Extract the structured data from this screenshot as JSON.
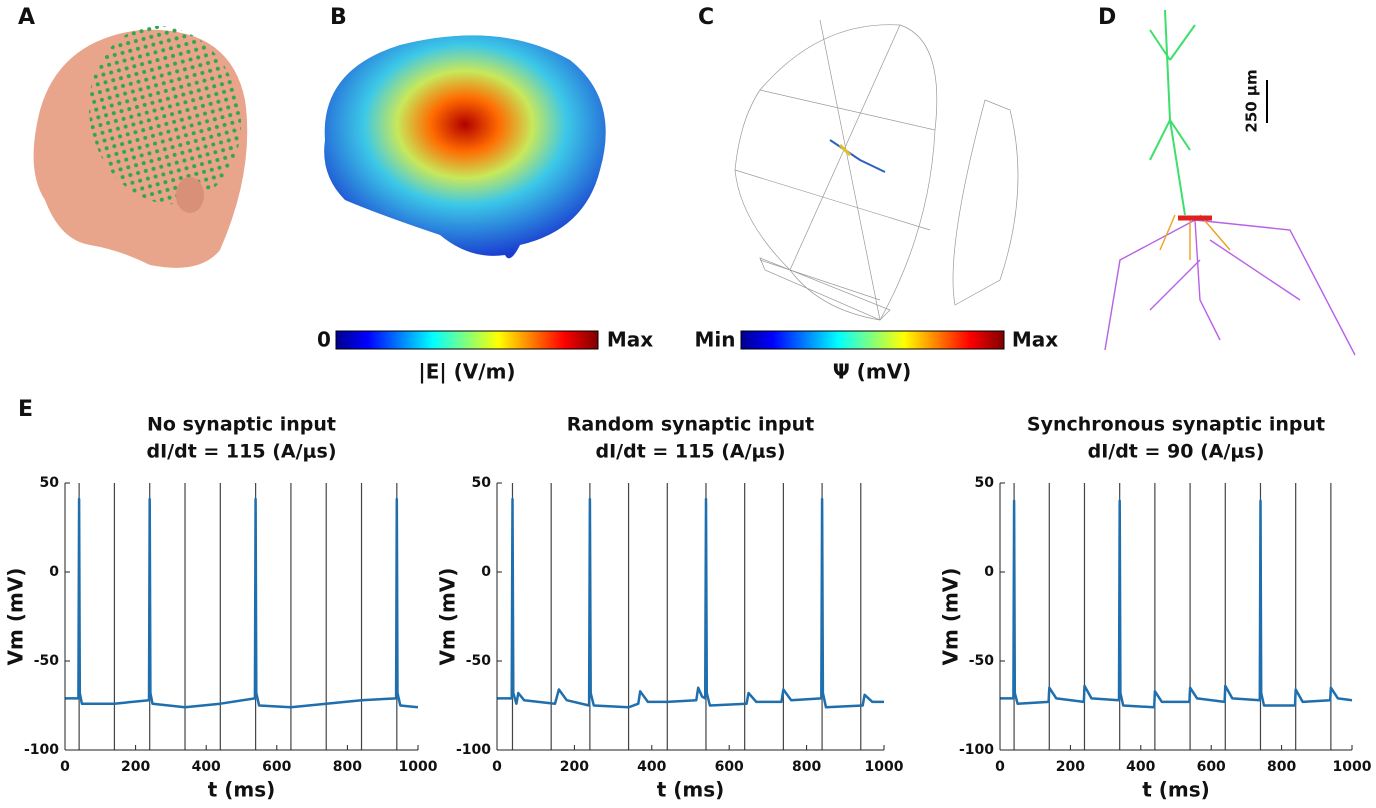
{
  "panels": {
    "labels": [
      "A",
      "B",
      "C",
      "D",
      "E"
    ],
    "colorbar_e": {
      "min": "0",
      "max": "Max",
      "label": "|E| (V/m)"
    },
    "colorbar_psi": {
      "min": "Min",
      "max": "Max",
      "label": "Ψ (mV)"
    },
    "scale_bar": "250 µm"
  },
  "chart_data": [
    {
      "type": "line",
      "title": "No synaptic input",
      "subtitle": "dI/dt = 115 (A/μs)",
      "x_label": "t (ms)",
      "y_label": "Vm (mV)",
      "xlim": [
        0,
        1000
      ],
      "ylim": [
        -100,
        50
      ],
      "xticks": [
        0,
        200,
        400,
        600,
        800,
        1000
      ],
      "yticks": [
        -100,
        -50,
        0,
        50
      ],
      "pulses": [
        40,
        140,
        240,
        340,
        440,
        540,
        640,
        740,
        840,
        940
      ],
      "pulse_color": "#444444",
      "series": [
        {
          "color": "#1f6fae",
          "x": [
            0,
            38,
            40,
            42,
            48,
            140,
            238,
            240,
            242,
            248,
            340,
            440,
            538,
            540,
            542,
            550,
            640,
            740,
            840,
            938,
            940,
            942,
            950,
            1000
          ],
          "values": [
            -71,
            -71,
            41,
            -68,
            -74,
            -74,
            -72,
            41,
            -68,
            -74,
            -76,
            -74,
            -71,
            41,
            -68,
            -75,
            -76,
            -74,
            -72,
            -71,
            41,
            -68,
            -75,
            -76
          ]
        }
      ]
    },
    {
      "type": "line",
      "title": "Random synaptic input",
      "subtitle": "dI/dt = 115 (A/μs)",
      "x_label": "t (ms)",
      "y_label": "Vm (mV)",
      "xlim": [
        0,
        1000
      ],
      "ylim": [
        -100,
        50
      ],
      "xticks": [
        0,
        200,
        400,
        600,
        800,
        1000
      ],
      "yticks": [
        -100,
        -50,
        0,
        50
      ],
      "pulses": [
        40,
        140,
        240,
        340,
        440,
        540,
        640,
        740,
        840,
        940
      ],
      "pulse_color": "#444444",
      "series": [
        {
          "color": "#1f6fae",
          "x": [
            0,
            38,
            40,
            42,
            50,
            55,
            70,
            150,
            160,
            180,
            238,
            240,
            242,
            250,
            340,
            365,
            370,
            390,
            440,
            515,
            520,
            530,
            538,
            540,
            542,
            550,
            645,
            650,
            670,
            735,
            740,
            760,
            838,
            840,
            842,
            850,
            945,
            950,
            970,
            1000
          ],
          "values": [
            -71,
            -71,
            41,
            -68,
            -74,
            -68,
            -72,
            -74,
            -66,
            -72,
            -75,
            41,
            -68,
            -75,
            -76,
            -74,
            -67,
            -73,
            -73,
            -72,
            -65,
            -70,
            -71,
            41,
            -68,
            -75,
            -74,
            -68,
            -73,
            -73,
            -66,
            -72,
            -71,
            41,
            -68,
            -76,
            -75,
            -69,
            -73,
            -73
          ]
        }
      ]
    },
    {
      "type": "line",
      "title": "Synchronous synaptic input",
      "subtitle": "dI/dt = 90 (A/μs)",
      "x_label": "t (ms)",
      "y_label": "Vm (mV)",
      "xlim": [
        0,
        1000
      ],
      "ylim": [
        -100,
        50
      ],
      "xticks": [
        0,
        200,
        400,
        600,
        800,
        1000
      ],
      "yticks": [
        -100,
        -50,
        0,
        50
      ],
      "pulses": [
        40,
        140,
        240,
        340,
        440,
        540,
        640,
        740,
        840,
        940
      ],
      "pulse_color": "#444444",
      "series": [
        {
          "color": "#1f6fae",
          "x": [
            0,
            38,
            40,
            42,
            50,
            138,
            140,
            160,
            238,
            240,
            260,
            338,
            340,
            342,
            350,
            438,
            440,
            460,
            538,
            540,
            560,
            638,
            640,
            660,
            738,
            740,
            742,
            750,
            838,
            840,
            860,
            938,
            940,
            960,
            1000
          ],
          "values": [
            -71,
            -71,
            40,
            -68,
            -74,
            -73,
            -65,
            -71,
            -73,
            -64,
            -71,
            -72,
            40,
            -68,
            -75,
            -76,
            -67,
            -73,
            -73,
            -65,
            -71,
            -73,
            -64,
            -71,
            -72,
            40,
            -68,
            -75,
            -75,
            -66,
            -73,
            -72,
            -65,
            -71,
            -72
          ]
        }
      ]
    }
  ]
}
